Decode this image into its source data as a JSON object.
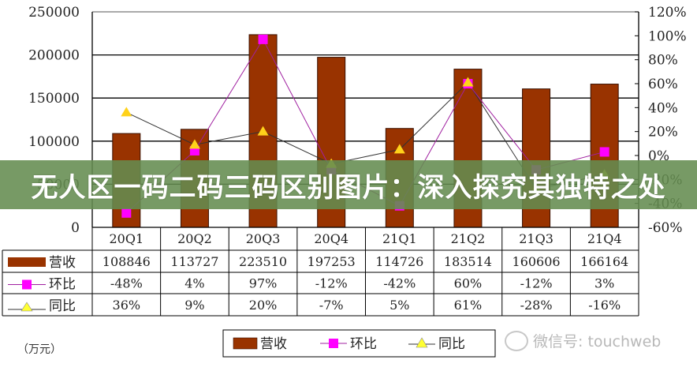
{
  "chart_data": {
    "type": "bar",
    "title": "",
    "xlabel": "",
    "ylabel": "",
    "unit_label": "（万元）",
    "categories": [
      "20Q1",
      "20Q2",
      "20Q3",
      "20Q4",
      "21Q1",
      "21Q2",
      "21Q3",
      "21Q4"
    ],
    "series": [
      {
        "name": "营收",
        "type": "bar",
        "axis": "left",
        "color": "#993300",
        "values": [
          108846,
          113727,
          223510,
          197253,
          114726,
          183514,
          160606,
          166164
        ],
        "display": [
          "108846",
          "113727",
          "223510",
          "197253",
          "114726",
          "183514",
          "160606",
          "166164"
        ]
      },
      {
        "name": "环比",
        "type": "line",
        "axis": "right",
        "color": "#ff00ff",
        "marker": "square",
        "values": [
          -48,
          4,
          97,
          -12,
          -42,
          60,
          -12,
          3
        ],
        "display": [
          "-48%",
          "4%",
          "97%",
          "-12%",
          "-42%",
          "60%",
          "-12%",
          "3%"
        ]
      },
      {
        "name": "同比",
        "type": "line",
        "axis": "right",
        "color": "#ffff00",
        "marker": "triangle",
        "values": [
          36,
          9,
          20,
          -7,
          5,
          61,
          -28,
          -16
        ],
        "display": [
          "36%",
          "9%",
          "20%",
          "-7%",
          "5%",
          "61%",
          "-28%",
          "-16%"
        ]
      }
    ],
    "left_axis": {
      "ylim": [
        0,
        250000
      ],
      "ticks": [
        "250000",
        "200000",
        "150000",
        "100000",
        "50000",
        "0"
      ]
    },
    "right_axis": {
      "ylim": [
        -60,
        120
      ],
      "ticks": [
        "120%",
        "100%",
        "80%",
        "60%",
        "40%",
        "20%",
        "0%",
        "-20%",
        "-40%",
        "-60%"
      ]
    },
    "grid": true,
    "legend": {
      "position": "bottom",
      "items": [
        "营收",
        "环比",
        "同比"
      ]
    },
    "data_table": true
  },
  "overlay": {
    "banner_text": "无人区一码二码三码区别图片：深入探究其独特之处",
    "watermark_text": "微信号: touchweb"
  }
}
